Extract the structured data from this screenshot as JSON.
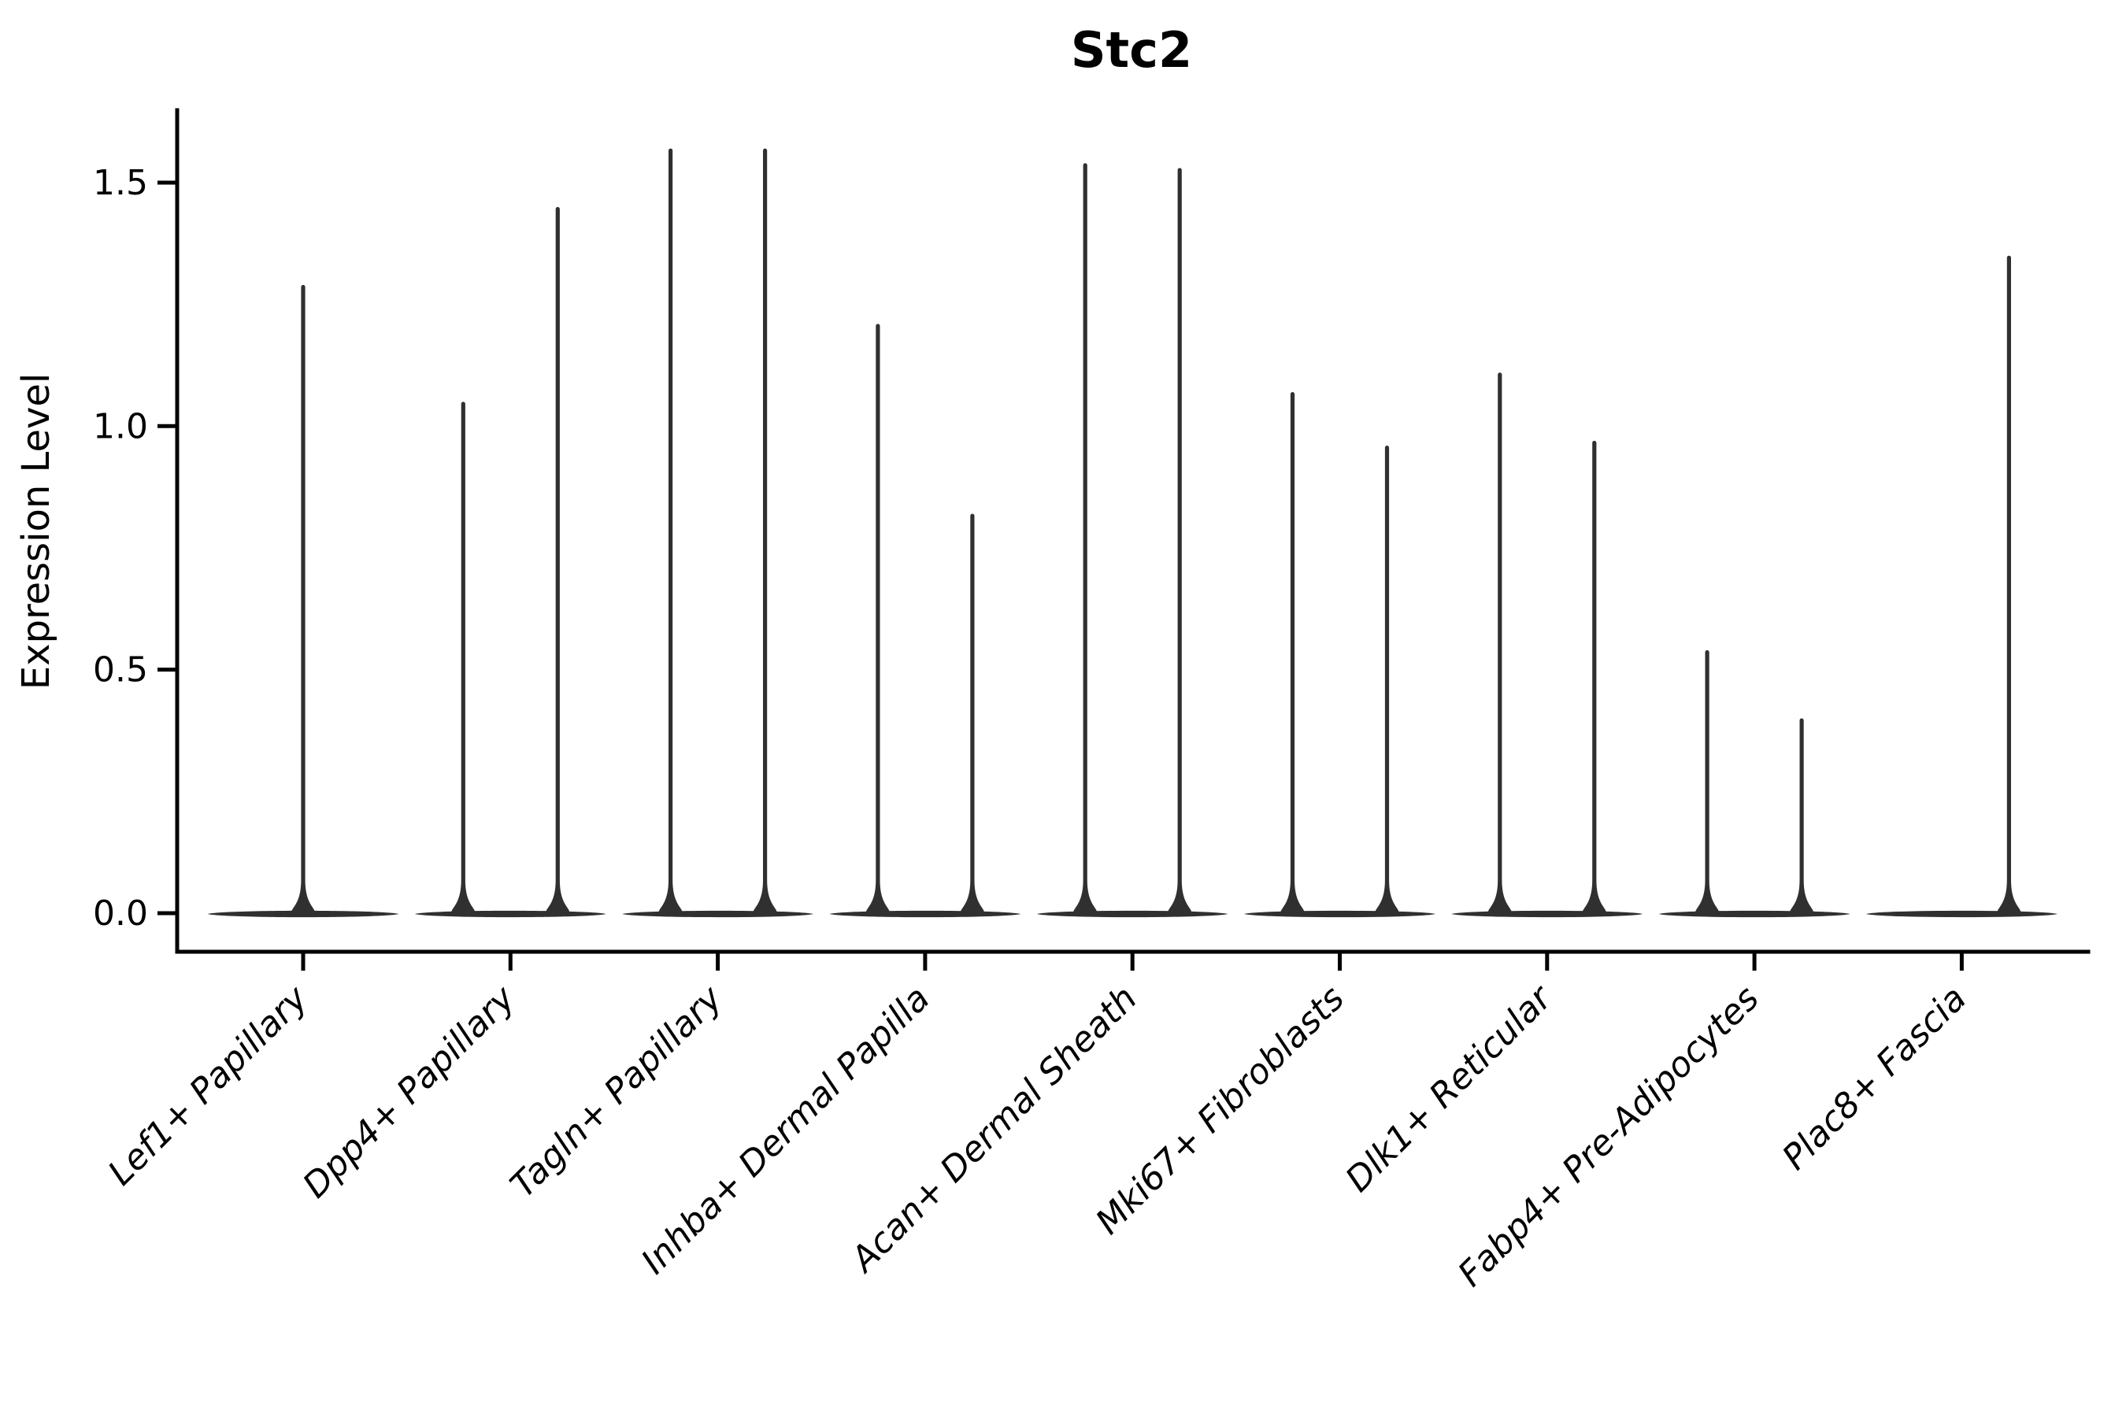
{
  "title": "Stc2",
  "axes": {
    "ylabel": "Expression Level",
    "ytick_labels": [
      "0.0",
      "0.5",
      "1.0",
      "1.5"
    ],
    "grid": false,
    "spines": [
      "left",
      "bottom"
    ]
  },
  "colors": {
    "violin": "#303030",
    "axis": "#000000",
    "text": "#000000",
    "background": "#ffffff"
  },
  "chart_data": {
    "type": "violin",
    "title": "Stc2",
    "xlabel": "",
    "ylabel": "Expression Level",
    "ylim": [
      -0.08,
      1.65
    ],
    "yticks": [
      0.0,
      0.5,
      1.0,
      1.5
    ],
    "legend_position": "none",
    "categories": [
      "Lef1+ Papillary",
      "Dpp4+ Papillary",
      "Tagln+ Papillary",
      "Inhba+ Dermal Papilla",
      "Acan+ Dermal Sheath",
      "Mki67+ Fibroblasts",
      "Dlk1+ Reticular",
      "Fabp4+ Pre-Adipocytes",
      "Plac8+ Fascia"
    ],
    "violin_style": "flat zero-density base with thin vertical density spike up to the maximum expression value; most cells have zero expression",
    "series": [
      {
        "category": "Lef1+ Papillary",
        "violins": [
          {
            "slot": "full",
            "max_expression": 1.29
          }
        ]
      },
      {
        "category": "Dpp4+ Papillary",
        "violins": [
          {
            "slot": "left",
            "max_expression": 1.05
          },
          {
            "slot": "right",
            "max_expression": 1.45
          }
        ]
      },
      {
        "category": "Tagln+ Papillary",
        "violins": [
          {
            "slot": "left",
            "max_expression": 1.57
          },
          {
            "slot": "right",
            "max_expression": 1.57
          }
        ]
      },
      {
        "category": "Inhba+ Dermal Papilla",
        "violins": [
          {
            "slot": "left",
            "max_expression": 1.21
          },
          {
            "slot": "right",
            "max_expression": 0.82
          }
        ]
      },
      {
        "category": "Acan+ Dermal Sheath",
        "violins": [
          {
            "slot": "left",
            "max_expression": 1.54
          },
          {
            "slot": "right",
            "max_expression": 1.53
          }
        ]
      },
      {
        "category": "Mki67+ Fibroblasts",
        "violins": [
          {
            "slot": "left",
            "max_expression": 1.07
          },
          {
            "slot": "right",
            "max_expression": 0.96
          }
        ]
      },
      {
        "category": "Dlk1+ Reticular",
        "violins": [
          {
            "slot": "left",
            "max_expression": 1.11
          },
          {
            "slot": "right",
            "max_expression": 0.97
          }
        ]
      },
      {
        "category": "Fabp4+ Pre-Adipocytes",
        "violins": [
          {
            "slot": "left",
            "max_expression": 0.54
          },
          {
            "slot": "right",
            "max_expression": 0.4
          }
        ]
      },
      {
        "category": "Plac8+ Fascia",
        "violins": [
          {
            "slot": "left",
            "max_expression": 0.0
          },
          {
            "slot": "right",
            "max_expression": 1.35
          }
        ]
      }
    ]
  }
}
